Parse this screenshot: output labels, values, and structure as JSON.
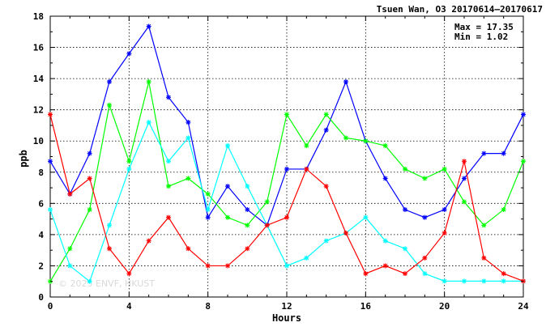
{
  "chart_data": {
    "type": "line",
    "title": "Tsuen Wan, O3 20170614—20170617",
    "xlabel": "Hours",
    "ylabel": "ppb",
    "xlim": [
      0,
      24
    ],
    "ylim": [
      0,
      18
    ],
    "xticks": [
      0,
      4,
      8,
      12,
      16,
      20,
      24
    ],
    "yticks": [
      0,
      2,
      4,
      6,
      8,
      10,
      12,
      14,
      16,
      18
    ],
    "grid": true,
    "stats": {
      "max": "Max = 17.35",
      "min": "Min =  1.02"
    },
    "watermark": "© 2025 ENVF, HKUST",
    "x": [
      0,
      1,
      2,
      3,
      4,
      5,
      6,
      7,
      8,
      9,
      10,
      11,
      12,
      13,
      14,
      15,
      16,
      17,
      18,
      19,
      20,
      21,
      22,
      23,
      24
    ],
    "series": [
      {
        "color": "#0000ff",
        "values": [
          8.7,
          6.6,
          9.2,
          13.8,
          15.6,
          17.35,
          12.8,
          11.2,
          5.1,
          7.1,
          5.6,
          4.6,
          8.2,
          8.2,
          10.7,
          13.8,
          10.0,
          7.6,
          5.6,
          5.1,
          5.6,
          7.6,
          9.2,
          9.2,
          11.7
        ]
      },
      {
        "color": "#00ff00",
        "values": [
          1.0,
          3.1,
          5.6,
          12.3,
          8.7,
          13.8,
          7.1,
          7.6,
          6.6,
          5.1,
          4.6,
          6.1,
          11.7,
          9.7,
          11.7,
          10.2,
          10.0,
          9.7,
          8.2,
          7.6,
          8.2,
          6.1,
          4.6,
          5.6,
          8.7
        ]
      },
      {
        "color": "#00ffff",
        "values": [
          5.6,
          2.0,
          1.0,
          4.6,
          8.2,
          11.2,
          8.7,
          10.2,
          5.6,
          9.7,
          7.1,
          4.6,
          2.0,
          2.5,
          3.6,
          4.1,
          5.1,
          3.6,
          3.1,
          1.5,
          1.02,
          1.02,
          1.02,
          1.02,
          1.02
        ]
      },
      {
        "color": "#ff0000",
        "values": [
          11.7,
          6.6,
          7.6,
          3.1,
          1.5,
          3.6,
          5.1,
          3.1,
          2.0,
          2.0,
          3.1,
          4.6,
          5.1,
          8.2,
          7.1,
          4.1,
          1.5,
          2.0,
          1.5,
          2.5,
          4.1,
          8.7,
          2.5,
          1.5,
          1.02
        ]
      }
    ]
  }
}
